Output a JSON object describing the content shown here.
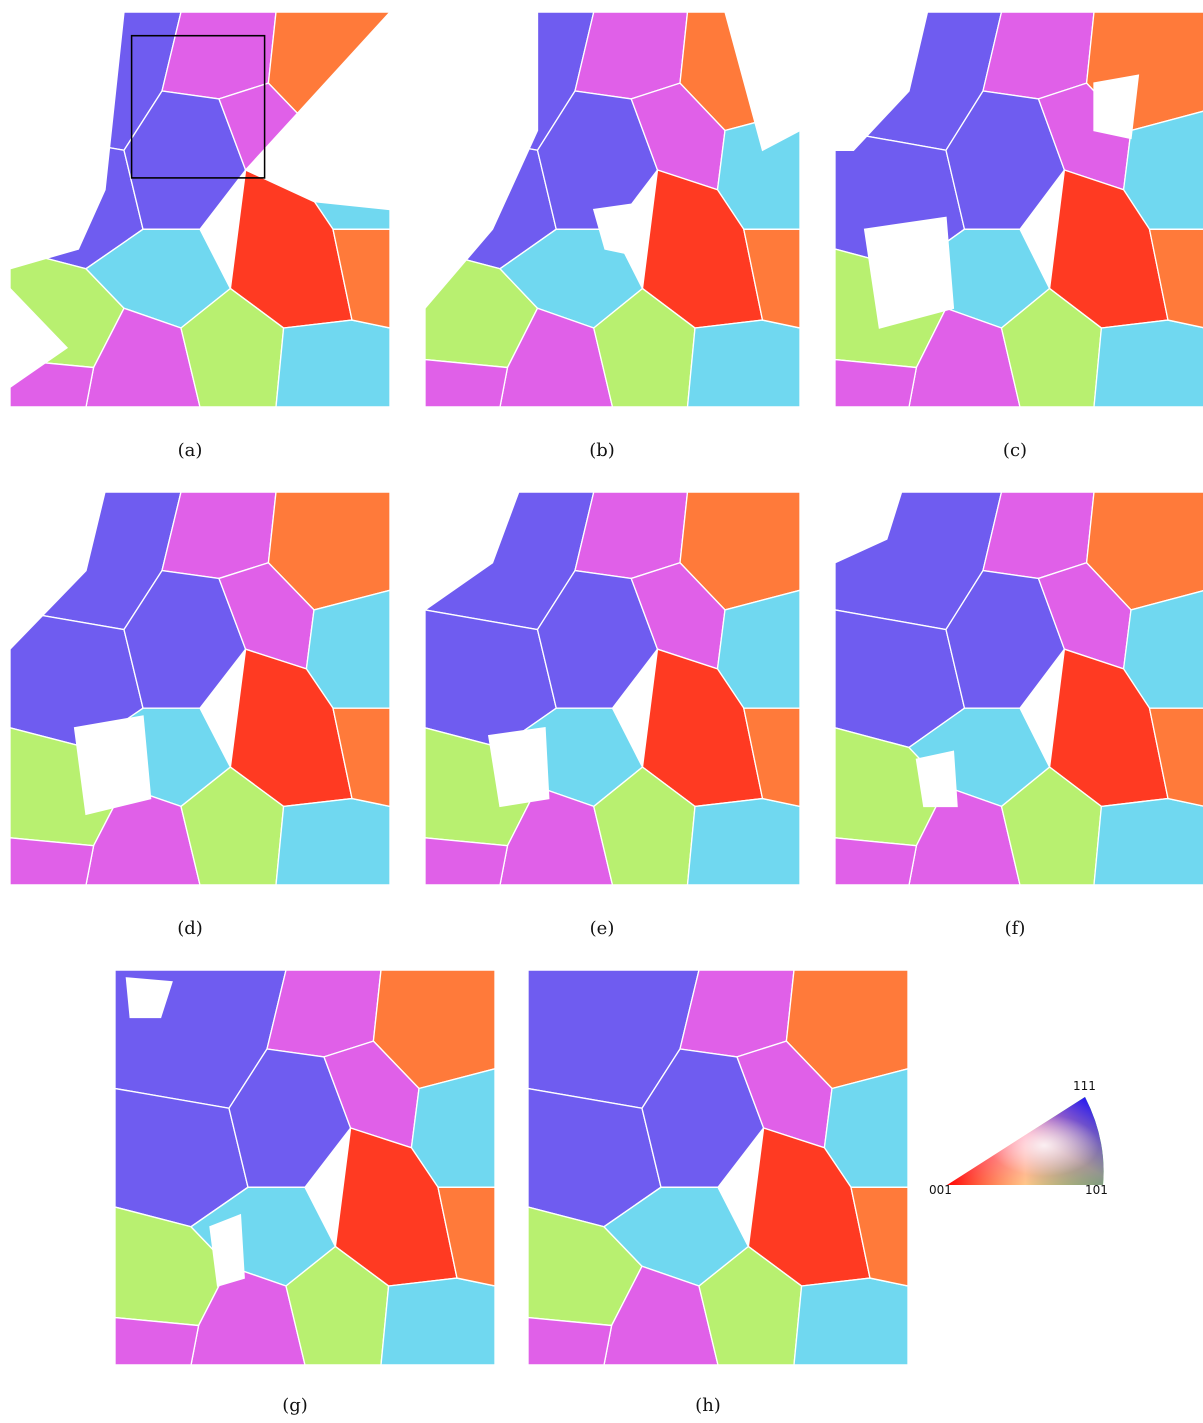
{
  "figure": {
    "panels": [
      {
        "id": "a",
        "caption": "(a)",
        "coverage": 0.55,
        "zoom_box": true
      },
      {
        "id": "b",
        "caption": "(b)",
        "coverage": 0.7,
        "zoom_box": false
      },
      {
        "id": "c",
        "caption": "(c)",
        "coverage": 0.78,
        "zoom_box": false
      },
      {
        "id": "d",
        "caption": "(d)",
        "coverage": 0.86,
        "zoom_box": false
      },
      {
        "id": "e",
        "caption": "(e)",
        "coverage": 0.88,
        "zoom_box": false
      },
      {
        "id": "f",
        "caption": "(f)",
        "coverage": 0.92,
        "zoom_box": false
      },
      {
        "id": "g",
        "caption": "(g)",
        "coverage": 0.96,
        "zoom_box": false
      },
      {
        "id": "h",
        "caption": "(h)",
        "coverage": 1.0,
        "zoom_box": false
      }
    ],
    "color_key": {
      "corners": {
        "top": "111",
        "left": "001",
        "right": "101"
      },
      "corner_colors": {
        "001": "#ff0000",
        "101": "#00ff00",
        "111": "#0000ff"
      }
    },
    "dominant_grain_colors": {
      "blue_violet": "#6f5cf0",
      "red_grain": "#ff3a22",
      "magenta": "#e060e8",
      "green_yellow": "#b8f070",
      "cyan": "#70d8f0",
      "orange": "#ff7a3a"
    }
  }
}
